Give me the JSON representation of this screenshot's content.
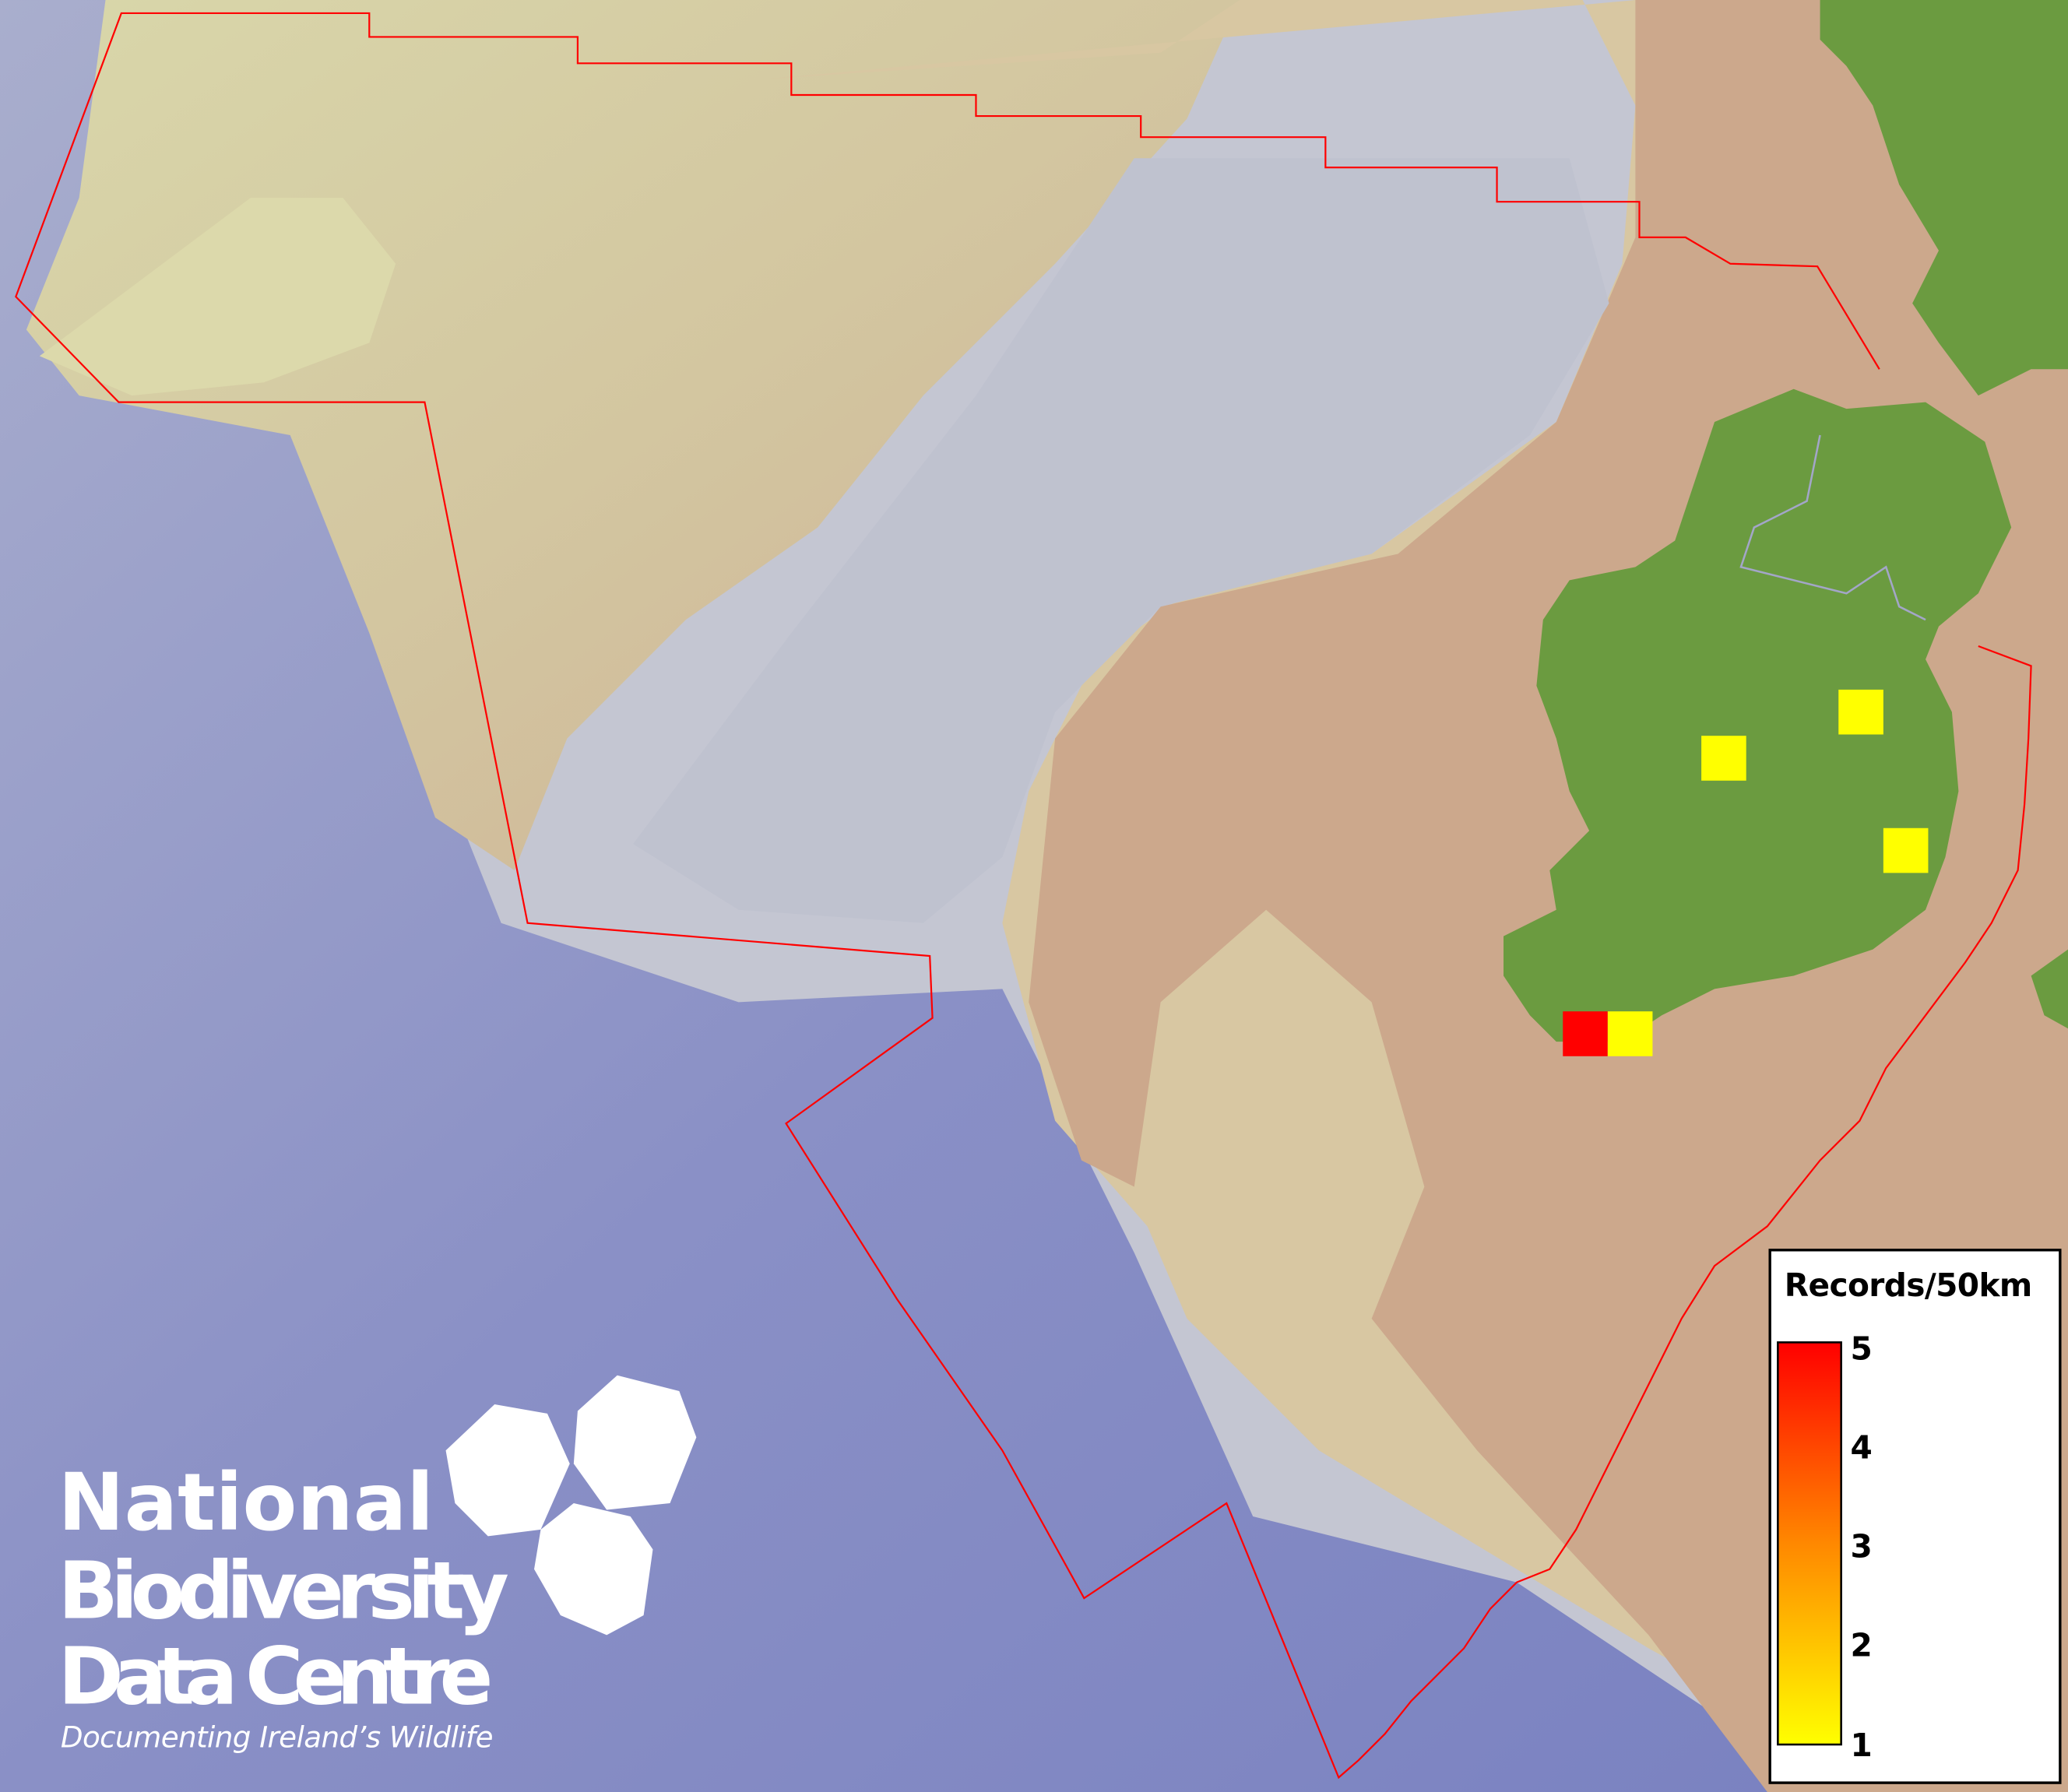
{
  "legend": {
    "title": "Records/50km",
    "scale_min": 1,
    "scale_max": 5,
    "ticks": [
      "5",
      "4",
      "3",
      "2",
      "1"
    ],
    "color_low": "#ffff00",
    "color_high": "#ff0000"
  },
  "grid_squares": [
    {
      "records": 1
    },
    {
      "records": 1
    },
    {
      "records": 1
    },
    {
      "records": 5
    },
    {
      "records": 1
    }
  ],
  "boundary_color": "#ff0000",
  "land_color": "#6b9b40",
  "logo": {
    "line1": "National",
    "line2": "Biodiversity",
    "line3": "Data Centre",
    "tagline": "Documenting Ireland’s Wildlife"
  }
}
